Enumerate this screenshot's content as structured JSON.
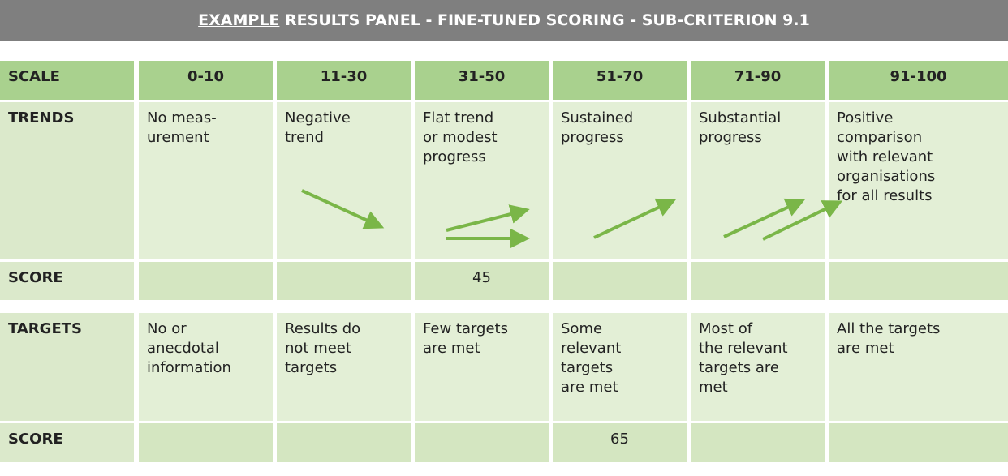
{
  "header": {
    "title_underlined": "EXAMPLE",
    "title_rest": " RESULTS PANEL - FINE-TUNED SCORING - SUB-CRITERION 9.1"
  },
  "table": {
    "scale": {
      "label": "SCALE",
      "cells": [
        "0-10",
        "11-30",
        "31-50",
        "51-70",
        "71-90",
        "91-100"
      ]
    },
    "trends": {
      "label": "TRENDS",
      "cells": [
        "No meas-\nurement",
        "Negative\ntrend",
        "Flat trend\nor modest\nprogress",
        "Sustained\nprogress",
        "Substantial\nprogress",
        "Positive\ncomparison\nwith relevant\norganisations\nfor all results"
      ]
    },
    "trends_score": {
      "label": "SCORE",
      "cells": [
        null,
        null,
        45,
        null,
        null,
        null
      ]
    },
    "targets": {
      "label": "TARGETS",
      "cells": [
        "No or\nanecdotal\ninformation",
        "Results do\nnot meet\ntargets",
        "Few targets\nare met",
        "Some\nrelevant\ntargets\nare met",
        "Most of\nthe relevant\ntargets are\nmet",
        "All the targets\nare met"
      ]
    },
    "targets_score": {
      "label": "SCORE",
      "cells": [
        null,
        null,
        null,
        65,
        null,
        null
      ]
    }
  }
}
